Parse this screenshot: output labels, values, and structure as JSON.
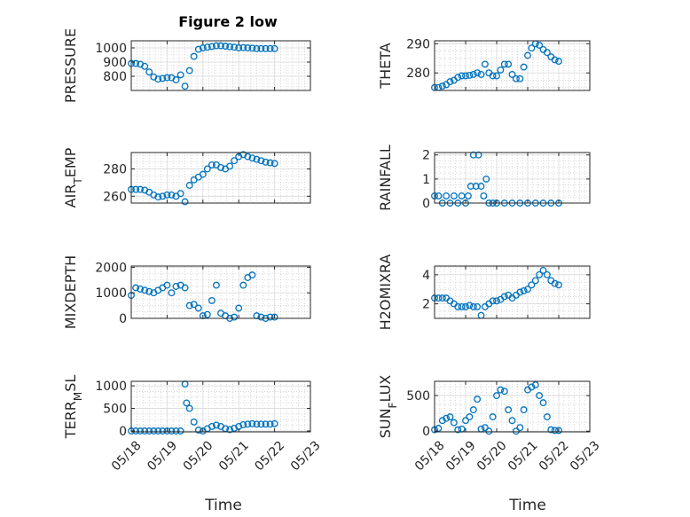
{
  "figure": {
    "title": "Figure 2 low",
    "xlabel_left": "Time",
    "xlabel_right": "Time"
  },
  "colors": {
    "marker": "#0072bd",
    "grid_major": "#d9d9d9",
    "grid_minor": "#bfbfbf",
    "axis": "#262626"
  },
  "chart_data": [
    {
      "type": "scatter",
      "title": "Figure 2 low",
      "ylabel": "PRESSURE",
      "ylabel_sub": null,
      "ylabel_tail": null,
      "xlim": [
        "05/18",
        "05/23"
      ],
      "ylim": [
        700,
        1050
      ],
      "yticks": [
        800,
        900,
        1000
      ],
      "grid": true,
      "series": [
        {
          "x": [
            "05/18 00:00",
            "05/18 03:00",
            "05/18 06:00",
            "05/18 09:00",
            "05/18 12:00",
            "05/18 15:00",
            "05/18 18:00",
            "05/18 21:00",
            "05/19 00:00",
            "05/19 03:00",
            "05/19 06:00",
            "05/19 09:00",
            "05/19 12:00",
            "05/19 15:00",
            "05/19 18:00",
            "05/19 21:00",
            "05/20 00:00",
            "05/20 03:00",
            "05/20 06:00",
            "05/20 09:00",
            "05/20 12:00",
            "05/20 15:00",
            "05/20 18:00",
            "05/20 21:00",
            "05/21 00:00",
            "05/21 03:00",
            "05/21 06:00",
            "05/21 09:00",
            "05/21 12:00",
            "05/21 15:00",
            "05/21 18:00",
            "05/21 21:00",
            "05/22 00:00"
          ],
          "y": [
            890,
            890,
            885,
            870,
            830,
            795,
            780,
            785,
            790,
            790,
            775,
            810,
            730,
            840,
            940,
            990,
            1000,
            1005,
            1010,
            1015,
            1015,
            1012,
            1008,
            1005,
            1000,
            1002,
            1000,
            998,
            995,
            995,
            995,
            995,
            995
          ]
        }
      ]
    },
    {
      "type": "scatter",
      "ylabel": "THETA",
      "ylabel_sub": null,
      "ylabel_tail": null,
      "xlim": [
        "05/18",
        "05/23"
      ],
      "ylim": [
        274,
        291
      ],
      "yticks": [
        280,
        290
      ],
      "grid": true,
      "series": [
        {
          "x": [
            "05/18 00:00",
            "05/18 03:00",
            "05/18 06:00",
            "05/18 09:00",
            "05/18 12:00",
            "05/18 15:00",
            "05/18 18:00",
            "05/18 21:00",
            "05/19 00:00",
            "05/19 03:00",
            "05/19 06:00",
            "05/19 09:00",
            "05/19 12:00",
            "05/19 15:00",
            "05/19 18:00",
            "05/19 21:00",
            "05/20 00:00",
            "05/20 03:00",
            "05/20 06:00",
            "05/20 09:00",
            "05/20 12:00",
            "05/20 15:00",
            "05/20 18:00",
            "05/20 21:00",
            "05/21 00:00",
            "05/21 03:00",
            "05/21 06:00",
            "05/21 09:00",
            "05/21 12:00",
            "05/21 15:00",
            "05/21 18:00",
            "05/21 21:00",
            "05/22 00:00"
          ],
          "y": [
            275,
            275,
            275.5,
            276,
            277,
            277.5,
            278.5,
            279,
            279,
            279.2,
            279.5,
            280,
            279.5,
            283,
            280,
            279,
            279,
            281,
            283,
            283,
            279.5,
            278,
            278,
            282,
            286,
            288.5,
            290,
            289.5,
            288,
            287,
            285.5,
            284.5,
            284
          ]
        }
      ]
    },
    {
      "type": "scatter",
      "ylabel": "AIR",
      "ylabel_sub": "T",
      "ylabel_tail": "EMP",
      "xlim": [
        "05/18",
        "05/23"
      ],
      "ylim": [
        255,
        292
      ],
      "yticks": [
        260,
        280
      ],
      "grid": true,
      "series": [
        {
          "x": [
            "05/18 00:00",
            "05/18 03:00",
            "05/18 06:00",
            "05/18 09:00",
            "05/18 12:00",
            "05/18 15:00",
            "05/18 18:00",
            "05/18 21:00",
            "05/19 00:00",
            "05/19 03:00",
            "05/19 06:00",
            "05/19 09:00",
            "05/19 12:00",
            "05/19 15:00",
            "05/19 18:00",
            "05/19 21:00",
            "05/20 00:00",
            "05/20 03:00",
            "05/20 06:00",
            "05/20 09:00",
            "05/20 12:00",
            "05/20 15:00",
            "05/20 18:00",
            "05/20 21:00",
            "05/21 00:00",
            "05/21 03:00",
            "05/21 06:00",
            "05/21 09:00",
            "05/21 12:00",
            "05/21 15:00",
            "05/21 18:00",
            "05/21 21:00",
            "05/22 00:00"
          ],
          "y": [
            265,
            265,
            265,
            264.5,
            263,
            261,
            259.5,
            260,
            261,
            261,
            260,
            262,
            256,
            268,
            272,
            274,
            276,
            280,
            283,
            283,
            281,
            280,
            282,
            286,
            289,
            290.5,
            289,
            288,
            287,
            286,
            285,
            284.5,
            284
          ]
        }
      ]
    },
    {
      "type": "scatter",
      "ylabel": "RAINFALL",
      "ylabel_sub": null,
      "ylabel_tail": null,
      "xlim": [
        "05/18",
        "05/23"
      ],
      "ylim": [
        0,
        2.1
      ],
      "yticks": [
        0,
        1,
        2
      ],
      "grid": true,
      "series": [
        {
          "x": [
            "05/18 00:00",
            "05/18 03:00",
            "05/18 06:00",
            "05/18 09:00",
            "05/18 12:00",
            "05/18 15:00",
            "05/18 18:00",
            "05/18 21:00",
            "05/19 00:00",
            "05/19 02:00",
            "05/19 04:00",
            "05/19 06:00",
            "05/19 08:00",
            "05/19 10:00",
            "05/19 12:00",
            "05/19 14:00",
            "05/19 16:00",
            "05/19 18:00",
            "05/19 21:00",
            "05/20 00:00",
            "05/20 06:00",
            "05/20 12:00",
            "05/20 18:00",
            "05/21 00:00",
            "05/21 06:00",
            "05/21 12:00",
            "05/21 18:00",
            "05/22 00:00"
          ],
          "y": [
            0.3,
            0.3,
            0,
            0.3,
            0,
            0.3,
            0,
            0.3,
            0,
            0.3,
            0.7,
            2,
            0.7,
            2,
            0.7,
            0.3,
            1,
            0,
            0,
            0,
            0,
            0,
            0,
            0,
            0,
            0,
            0,
            0
          ]
        }
      ]
    },
    {
      "type": "scatter",
      "ylabel": "MIXDEPTH",
      "ylabel_sub": null,
      "ylabel_tail": null,
      "xlim": [
        "05/18",
        "05/23"
      ],
      "ylim": [
        0,
        2050
      ],
      "yticks": [
        0,
        1000,
        2000
      ],
      "grid": true,
      "series": [
        {
          "x": [
            "05/18 00:00",
            "05/18 03:00",
            "05/18 06:00",
            "05/18 09:00",
            "05/18 12:00",
            "05/18 15:00",
            "05/18 18:00",
            "05/18 21:00",
            "05/19 00:00",
            "05/19 03:00",
            "05/19 06:00",
            "05/19 09:00",
            "05/19 12:00",
            "05/19 15:00",
            "05/19 18:00",
            "05/19 21:00",
            "05/20 00:00",
            "05/20 03:00",
            "05/20 06:00",
            "05/20 09:00",
            "05/20 12:00",
            "05/20 15:00",
            "05/20 18:00",
            "05/20 21:00",
            "05/21 00:00",
            "05/21 03:00",
            "05/21 06:00",
            "05/21 09:00",
            "05/21 12:00",
            "05/21 15:00",
            "05/21 18:00",
            "05/21 21:00",
            "05/22 00:00"
          ],
          "y": [
            900,
            1200,
            1150,
            1100,
            1050,
            1000,
            1100,
            1200,
            1300,
            1000,
            1250,
            1300,
            1200,
            500,
            550,
            400,
            100,
            150,
            700,
            1300,
            200,
            100,
            0,
            50,
            400,
            1300,
            1600,
            1700,
            100,
            50,
            0,
            50,
            50
          ]
        }
      ]
    },
    {
      "type": "scatter",
      "ylabel": "H2OMIXRA",
      "ylabel_sub": null,
      "ylabel_tail": null,
      "xlim": [
        "05/18",
        "05/23"
      ],
      "ylim": [
        1,
        4.6
      ],
      "yticks": [
        2,
        4
      ],
      "grid": true,
      "series": [
        {
          "x": [
            "05/18 00:00",
            "05/18 03:00",
            "05/18 06:00",
            "05/18 09:00",
            "05/18 12:00",
            "05/18 15:00",
            "05/18 18:00",
            "05/18 21:00",
            "05/19 00:00",
            "05/19 03:00",
            "05/19 06:00",
            "05/19 09:00",
            "05/19 12:00",
            "05/19 15:00",
            "05/19 18:00",
            "05/19 21:00",
            "05/20 00:00",
            "05/20 03:00",
            "05/20 06:00",
            "05/20 09:00",
            "05/20 12:00",
            "05/20 15:00",
            "05/20 18:00",
            "05/20 21:00",
            "05/21 00:00",
            "05/21 03:00",
            "05/21 06:00",
            "05/21 09:00",
            "05/21 12:00",
            "05/21 15:00",
            "05/21 18:00",
            "05/21 21:00",
            "05/22 00:00"
          ],
          "y": [
            2.4,
            2.4,
            2.4,
            2.4,
            2.2,
            2.0,
            1.8,
            1.8,
            1.8,
            1.9,
            1.8,
            1.8,
            1.2,
            1.8,
            2.0,
            2.2,
            2.2,
            2.3,
            2.5,
            2.6,
            2.4,
            2.6,
            2.8,
            2.9,
            3.0,
            3.3,
            3.6,
            4.0,
            4.3,
            4.0,
            3.6,
            3.4,
            3.3
          ]
        }
      ]
    },
    {
      "type": "scatter",
      "ylabel": "TERR",
      "ylabel_sub": "M",
      "ylabel_tail": "SL",
      "xlim": [
        "05/18",
        "05/23"
      ],
      "ylim": [
        -20,
        1100
      ],
      "yticks": [
        0,
        500,
        1000
      ],
      "grid": true,
      "series": [
        {
          "x": [
            "05/18 00:00",
            "05/18 03:00",
            "05/18 06:00",
            "05/18 09:00",
            "05/18 12:00",
            "05/18 15:00",
            "05/18 18:00",
            "05/18 21:00",
            "05/19 00:00",
            "05/19 03:00",
            "05/19 06:00",
            "05/19 09:00",
            "05/19 12:00",
            "05/19 13:00",
            "05/19 15:00",
            "05/19 18:00",
            "05/19 21:00",
            "05/20 00:00",
            "05/20 03:00",
            "05/20 06:00",
            "05/20 09:00",
            "05/20 12:00",
            "05/20 15:00",
            "05/20 18:00",
            "05/20 21:00",
            "05/21 00:00",
            "05/21 03:00",
            "05/21 06:00",
            "05/21 09:00",
            "05/21 12:00",
            "05/21 15:00",
            "05/21 18:00",
            "05/21 21:00",
            "05/22 00:00"
          ],
          "y": [
            0,
            0,
            0,
            0,
            0,
            0,
            0,
            0,
            0,
            0,
            0,
            0,
            1040,
            620,
            500,
            200,
            20,
            0,
            50,
            100,
            130,
            100,
            50,
            30,
            60,
            100,
            140,
            150,
            160,
            150,
            150,
            150,
            150,
            160
          ]
        }
      ]
    },
    {
      "type": "scatter",
      "ylabel": "SUN",
      "ylabel_sub": "F",
      "ylabel_tail": "LUX",
      "xlim": [
        "05/18",
        "05/23"
      ],
      "ylim": [
        -10,
        700
      ],
      "yticks": [
        0,
        500
      ],
      "grid": true,
      "series": [
        {
          "x": [
            "05/18 00:00",
            "05/18 03:00",
            "05/18 06:00",
            "05/18 09:00",
            "05/18 12:00",
            "05/18 15:00",
            "05/18 18:00",
            "05/18 21:00",
            "05/19 00:00",
            "05/19 03:00",
            "05/19 06:00",
            "05/19 09:00",
            "05/19 12:00",
            "05/19 15:00",
            "05/19 18:00",
            "05/19 21:00",
            "05/20 00:00",
            "05/20 03:00",
            "05/20 06:00",
            "05/20 09:00",
            "05/20 12:00",
            "05/20 15:00",
            "05/20 18:00",
            "05/20 21:00",
            "05/21 00:00",
            "05/21 03:00",
            "05/21 06:00",
            "05/21 09:00",
            "05/21 12:00",
            "05/21 15:00",
            "05/21 18:00",
            "05/21 21:00",
            "05/22 00:00"
          ],
          "y": [
            20,
            40,
            150,
            180,
            200,
            120,
            20,
            30,
            150,
            200,
            300,
            450,
            30,
            50,
            0,
            200,
            500,
            580,
            560,
            300,
            150,
            0,
            50,
            300,
            580,
            620,
            650,
            500,
            400,
            200,
            20,
            10,
            10
          ]
        }
      ]
    }
  ]
}
